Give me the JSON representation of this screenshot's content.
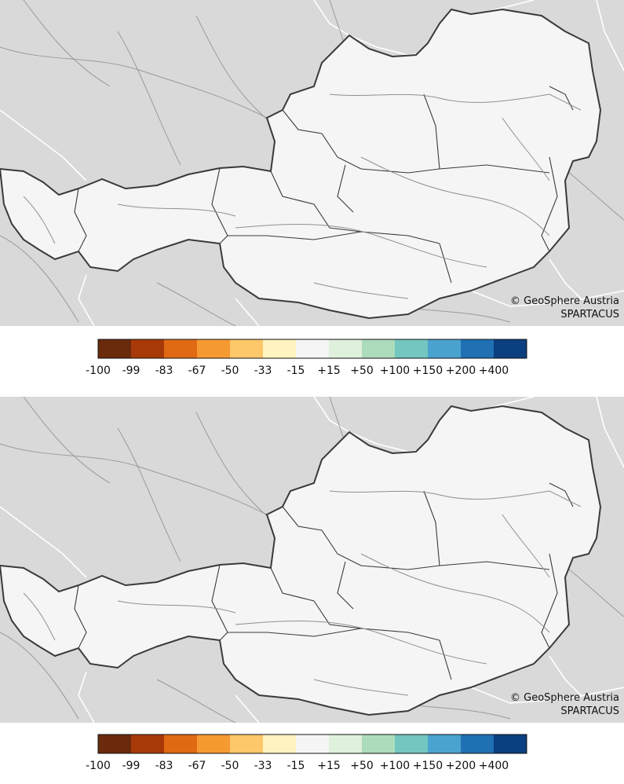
{
  "maps": [
    {
      "id": "top",
      "credit_line1": "© GeoSphere Austria",
      "credit_line2": "SPARTACUS"
    },
    {
      "id": "bottom",
      "credit_line1": "© GeoSphere Austria",
      "credit_line2": "SPARTACUS"
    }
  ],
  "legend": {
    "colors": [
      "#6b2a0c",
      "#a83a0a",
      "#e06a14",
      "#f59a30",
      "#fdc76a",
      "#fff3bf",
      "#f5f5f5",
      "#dff0dc",
      "#addcbd",
      "#74c6c0",
      "#4aa3cf",
      "#2070b4",
      "#0b3f80"
    ],
    "labels": [
      "-100",
      "-99",
      "-83",
      "-67",
      "-50",
      "-33",
      "-15",
      "+15",
      "+50",
      "+100",
      "+150",
      "+200",
      "+400"
    ]
  },
  "colors": {
    "background": "#d9d9d9",
    "border": "#3a3a3a",
    "river": "#9a9a9a",
    "outside_border": "#ffffff"
  }
}
